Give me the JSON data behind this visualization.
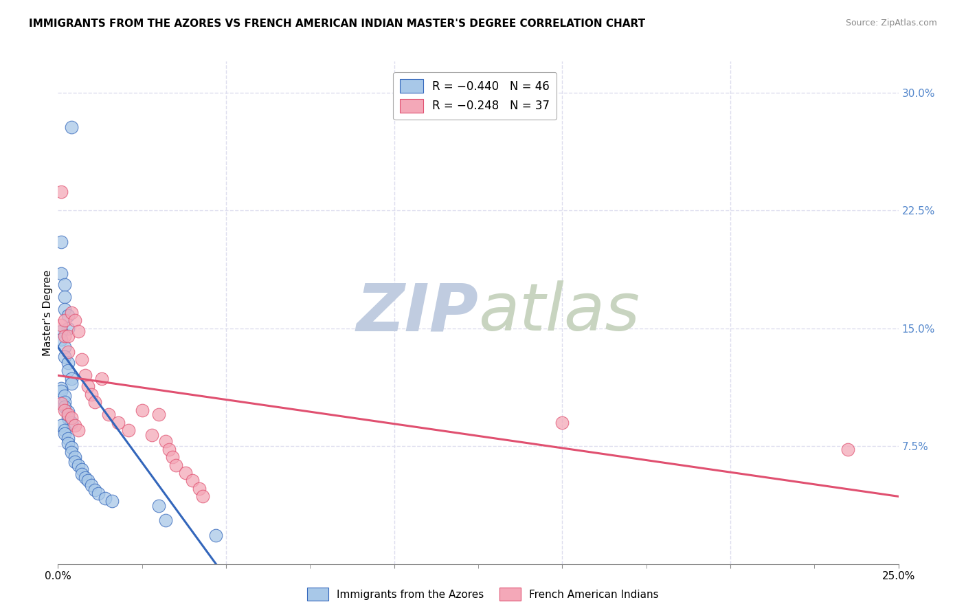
{
  "title": "IMMIGRANTS FROM THE AZORES VS FRENCH AMERICAN INDIAN MASTER'S DEGREE CORRELATION CHART",
  "source": "Source: ZipAtlas.com",
  "ylabel": "Master's Degree",
  "right_yticks": [
    "30.0%",
    "22.5%",
    "15.0%",
    "7.5%"
  ],
  "right_ytick_vals": [
    0.3,
    0.225,
    0.15,
    0.075
  ],
  "xlim": [
    0.0,
    0.25
  ],
  "ylim": [
    0.0,
    0.32
  ],
  "color_blue": "#A8C8E8",
  "color_pink": "#F4A8B8",
  "trendline_blue": "#3366BB",
  "trendline_pink": "#E05070",
  "blue_scatter_x": [
    0.004,
    0.001,
    0.001,
    0.002,
    0.002,
    0.002,
    0.003,
    0.003,
    0.001,
    0.001,
    0.002,
    0.002,
    0.003,
    0.003,
    0.004,
    0.004,
    0.001,
    0.001,
    0.002,
    0.002,
    0.002,
    0.003,
    0.003,
    0.004,
    0.001,
    0.002,
    0.002,
    0.003,
    0.003,
    0.004,
    0.004,
    0.005,
    0.005,
    0.006,
    0.007,
    0.007,
    0.008,
    0.009,
    0.01,
    0.011,
    0.012,
    0.014,
    0.016,
    0.03,
    0.032,
    0.047
  ],
  "blue_scatter_y": [
    0.278,
    0.205,
    0.185,
    0.178,
    0.17,
    0.162,
    0.158,
    0.15,
    0.148,
    0.143,
    0.138,
    0.132,
    0.128,
    0.123,
    0.118,
    0.115,
    0.112,
    0.11,
    0.107,
    0.103,
    0.1,
    0.097,
    0.093,
    0.09,
    0.088,
    0.085,
    0.083,
    0.08,
    0.077,
    0.074,
    0.071,
    0.068,
    0.065,
    0.063,
    0.06,
    0.057,
    0.055,
    0.053,
    0.05,
    0.047,
    0.045,
    0.042,
    0.04,
    0.037,
    0.028,
    0.018
  ],
  "pink_scatter_x": [
    0.001,
    0.001,
    0.001,
    0.002,
    0.002,
    0.002,
    0.003,
    0.003,
    0.003,
    0.004,
    0.004,
    0.005,
    0.005,
    0.006,
    0.006,
    0.007,
    0.008,
    0.009,
    0.01,
    0.011,
    0.013,
    0.015,
    0.018,
    0.021,
    0.025,
    0.028,
    0.03,
    0.032,
    0.033,
    0.034,
    0.035,
    0.038,
    0.04,
    0.042,
    0.043,
    0.15,
    0.235
  ],
  "pink_scatter_y": [
    0.237,
    0.152,
    0.102,
    0.155,
    0.145,
    0.098,
    0.145,
    0.135,
    0.095,
    0.16,
    0.093,
    0.155,
    0.088,
    0.148,
    0.085,
    0.13,
    0.12,
    0.113,
    0.108,
    0.103,
    0.118,
    0.095,
    0.09,
    0.085,
    0.098,
    0.082,
    0.095,
    0.078,
    0.073,
    0.068,
    0.063,
    0.058,
    0.053,
    0.048,
    0.043,
    0.09,
    0.073
  ],
  "blue_trend_x": [
    0.0,
    0.047
  ],
  "blue_trend_y": [
    0.138,
    0.0
  ],
  "pink_trend_x": [
    0.0,
    0.25
  ],
  "pink_trend_y": [
    0.12,
    0.043
  ],
  "watermark_zip": "ZIP",
  "watermark_atlas": "atlas",
  "watermark_color_zip": "#C8D8EE",
  "watermark_color_atlas": "#C8D8C8",
  "grid_color": "#DDDDEE",
  "xtick_positions": [
    0.0,
    0.05,
    0.1,
    0.15,
    0.2,
    0.25
  ],
  "xtick_minor": [
    0.025,
    0.075,
    0.125,
    0.175,
    0.225
  ]
}
